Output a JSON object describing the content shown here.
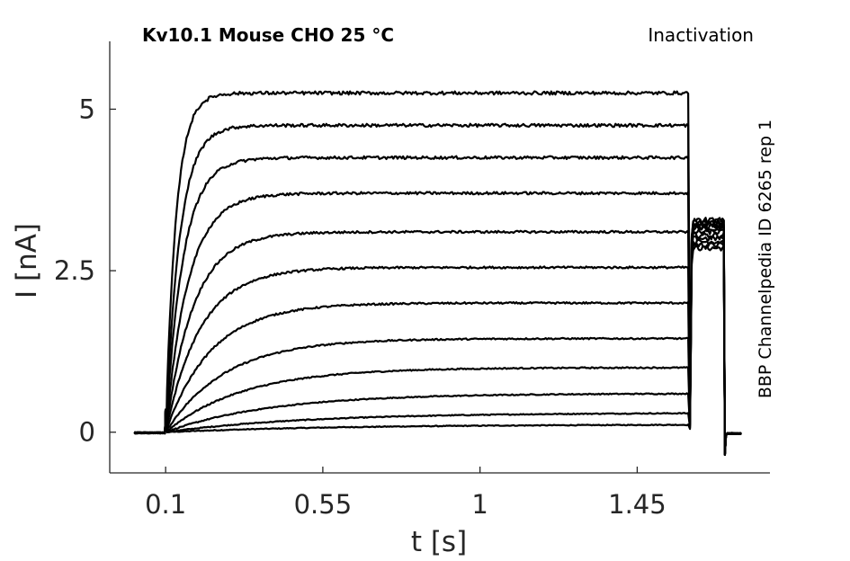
{
  "chart_data": {
    "type": "line",
    "title": "Kv10.1  Mouse  CHO  25 °C",
    "subtitle": "Inactivation",
    "side_label": "BBP Channelpedia ID 6265 rep 1",
    "xlabel": "t [s]",
    "ylabel": "I [nA]",
    "xlim": [
      -0.06,
      1.83
    ],
    "ylim": [
      -0.63,
      6.05
    ],
    "x_ticks": [
      0.1,
      0.55,
      1,
      1.45
    ],
    "x_tick_labels": [
      "0.1",
      "0.55",
      "1",
      "1.45"
    ],
    "y_ticks": [
      0,
      2.5,
      5
    ],
    "y_tick_labels": [
      "0",
      "2.5",
      "5"
    ],
    "grid": false,
    "legend": "none",
    "line_color": "#000000",
    "protocol": {
      "baseline_start": 0.01,
      "pulse_start": 0.1,
      "pulse_end": 1.6,
      "tail_end": 1.7,
      "trace_end": 1.75
    },
    "series": [
      {
        "steady": 0.12,
        "tau": 0.5,
        "tail": 2.85
      },
      {
        "steady": 0.3,
        "tau": 0.4,
        "tail": 2.9
      },
      {
        "steady": 0.6,
        "tau": 0.3,
        "tail": 2.95
      },
      {
        "steady": 1.0,
        "tau": 0.22,
        "tail": 3.0
      },
      {
        "steady": 1.45,
        "tau": 0.17,
        "tail": 3.05
      },
      {
        "steady": 2.0,
        "tau": 0.13,
        "tail": 3.1
      },
      {
        "steady": 2.55,
        "tau": 0.1,
        "tail": 3.15
      },
      {
        "steady": 3.1,
        "tau": 0.08,
        "tail": 3.18
      },
      {
        "steady": 3.7,
        "tau": 0.065,
        "tail": 3.2
      },
      {
        "steady": 4.25,
        "tau": 0.05,
        "tail": 3.22
      },
      {
        "steady": 4.75,
        "tau": 0.04,
        "tail": 3.25
      },
      {
        "steady": 5.25,
        "tau": 0.03,
        "tail": 3.28
      }
    ]
  }
}
